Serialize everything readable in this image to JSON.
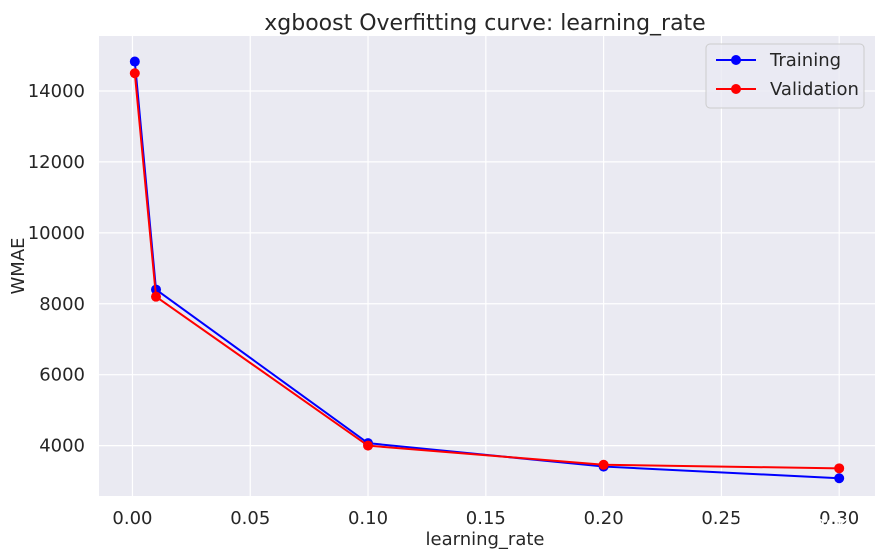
{
  "chart_data": {
    "type": "line",
    "title": "xgboost Overfitting curve: learning_rate",
    "xlabel": "learning_rate",
    "ylabel": "WMAE",
    "x": [
      0.001,
      0.01,
      0.1,
      0.2,
      0.3
    ],
    "series": [
      {
        "name": "Training",
        "color": "#0000ff",
        "values": [
          14830,
          8400,
          4070,
          3410,
          3080
        ]
      },
      {
        "name": "Validation",
        "color": "#ff0000",
        "values": [
          14500,
          8200,
          4000,
          3460,
          3360
        ]
      }
    ],
    "xlim": [
      -0.0142,
      0.3152
    ],
    "ylim": [
      2580,
      15550
    ],
    "xticks": [
      0.0,
      0.05,
      0.1,
      0.15,
      0.2,
      0.25,
      0.3
    ],
    "xtick_labels": [
      "0.00",
      "0.05",
      "0.10",
      "0.15",
      "0.20",
      "0.25",
      "0.30"
    ],
    "yticks": [
      4000,
      6000,
      8000,
      10000,
      12000,
      14000
    ],
    "ytick_labels": [
      "4000",
      "6000",
      "8000",
      "10000",
      "12000",
      "14000"
    ],
    "grid": true,
    "legend_position": "top-right",
    "background": "#eaeaf2"
  },
  "watermark": {
    "text": "alitrack",
    "icon": "wechat-icon"
  }
}
